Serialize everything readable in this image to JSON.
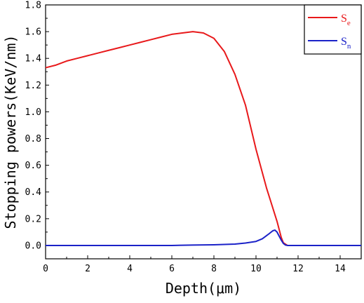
{
  "chart_data": {
    "type": "line",
    "title": "",
    "xlabel": "Depth(μm)",
    "ylabel": "Stopping powers(KeV/nm)",
    "xlim": [
      0,
      15
    ],
    "ylim": [
      -0.1,
      1.8
    ],
    "x_ticks": [
      0,
      2,
      4,
      6,
      8,
      10,
      12,
      14
    ],
    "x_tick_labels": [
      "0",
      "2",
      "4",
      "6",
      "8",
      "10",
      "12",
      "14"
    ],
    "y_ticks": [
      0.0,
      0.2,
      0.4,
      0.6,
      0.8,
      1.0,
      1.2,
      1.4,
      1.6,
      1.8
    ],
    "y_tick_labels": [
      "0.0",
      "0.2",
      "0.4",
      "0.6",
      "0.8",
      "1.0",
      "1.2",
      "1.4",
      "1.6",
      "1.8"
    ],
    "grid": false,
    "legend_position": "top-right",
    "series": [
      {
        "name": "Se",
        "label_main": "S",
        "label_sub": "e",
        "color": "#e8191b",
        "x": [
          0,
          0.5,
          1,
          1.5,
          2,
          2.5,
          3,
          3.5,
          4,
          4.5,
          5,
          5.5,
          6,
          6.5,
          7,
          7.5,
          8,
          8.5,
          9,
          9.5,
          10,
          10.5,
          11,
          11.2,
          11.3,
          11.4,
          11.5,
          12,
          13,
          14,
          15
        ],
        "y": [
          1.33,
          1.35,
          1.38,
          1.4,
          1.42,
          1.44,
          1.46,
          1.48,
          1.5,
          1.52,
          1.54,
          1.56,
          1.58,
          1.59,
          1.6,
          1.59,
          1.55,
          1.45,
          1.28,
          1.05,
          0.72,
          0.43,
          0.18,
          0.06,
          0.02,
          0.01,
          0.0,
          0.0,
          0.0,
          0.0,
          0.0
        ]
      },
      {
        "name": "Sn",
        "label_main": "S",
        "label_sub": "n",
        "color": "#1b22c8",
        "x": [
          0,
          1,
          2,
          3,
          4,
          5,
          6,
          7,
          8,
          9,
          9.5,
          10,
          10.3,
          10.6,
          10.8,
          10.9,
          11.0,
          11.1,
          11.2,
          11.3,
          11.4,
          11.5,
          12,
          13,
          14,
          15
        ],
        "y": [
          0.0,
          0.0,
          0.0,
          0.0,
          0.0,
          0.0,
          0.0,
          0.003,
          0.005,
          0.01,
          0.018,
          0.03,
          0.05,
          0.085,
          0.11,
          0.115,
          0.1,
          0.07,
          0.04,
          0.015,
          0.003,
          0.0,
          0.0,
          0.0,
          0.0,
          0.0
        ]
      }
    ]
  }
}
